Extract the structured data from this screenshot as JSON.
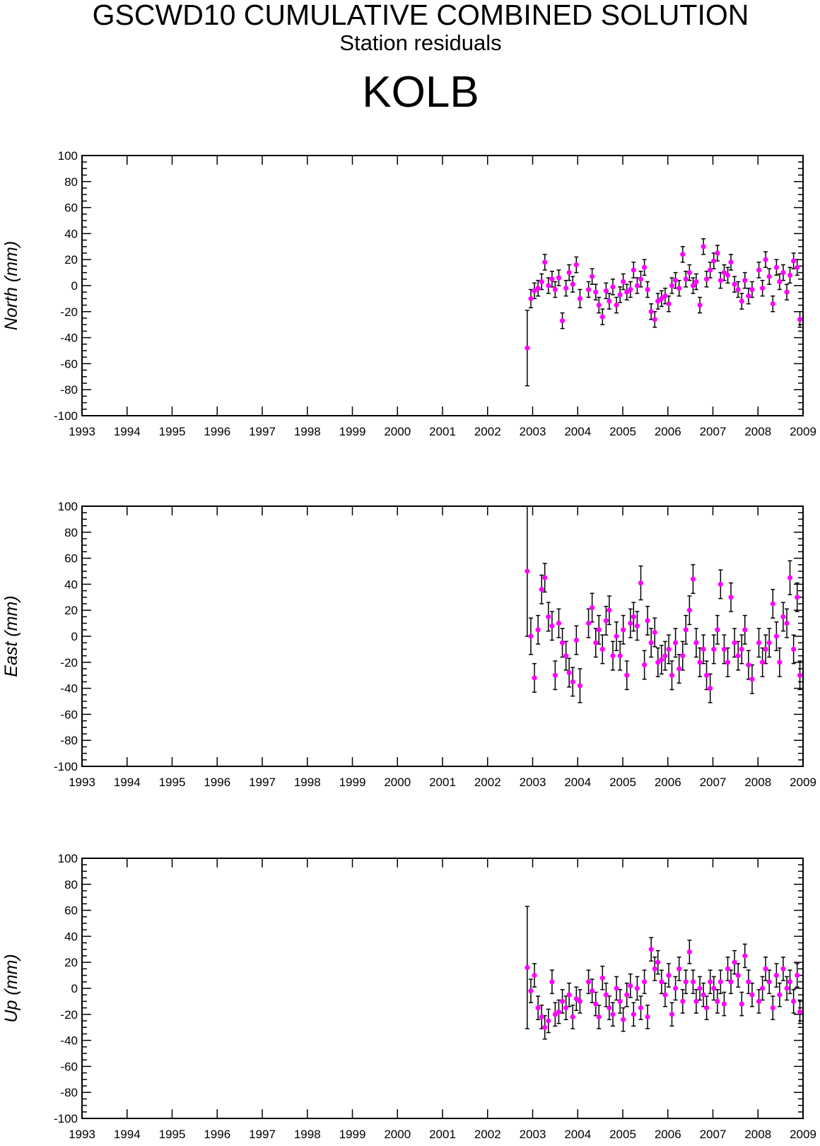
{
  "header": {
    "title": "GSCWD10 CUMULATIVE COMBINED SOLUTION",
    "subtitle": "Station residuals",
    "station": "KOLB"
  },
  "colors": {
    "marker": "#ff00ff",
    "error_bar": "#000000",
    "axis": "#000000"
  },
  "chart_data": [
    {
      "type": "scatter",
      "ylabel": "North (mm)",
      "xlim": [
        1993,
        2009
      ],
      "ylim": [
        -100,
        100
      ],
      "xticks": [
        "1993",
        "1994",
        "1995",
        "1996",
        "1997",
        "1998",
        "1999",
        "2000",
        "2001",
        "2002",
        "2003",
        "2004",
        "2005",
        "2006",
        "2007",
        "2008",
        "2009"
      ],
      "yticks": [
        "100",
        "80",
        "60",
        "40",
        "20",
        "0",
        "-20",
        "-40",
        "-60",
        "-80",
        "-100"
      ],
      "series": [
        {
          "x": [
            2002.88,
            2002.96,
            2003.04,
            2003.12,
            2003.2,
            2003.27,
            2003.35,
            2003.43,
            2003.5,
            2003.58,
            2003.66,
            2003.74,
            2003.81,
            2003.89,
            2003.97,
            2004.05,
            2004.24,
            2004.32,
            2004.4,
            2004.47,
            2004.55,
            2004.63,
            2004.7,
            2004.78,
            2004.86,
            2004.94,
            2005.01,
            2005.09,
            2005.17,
            2005.24,
            2005.32,
            2005.4,
            2005.48,
            2005.55,
            2005.63,
            2005.71,
            2005.78,
            2005.86,
            2005.94,
            2006.02,
            2006.09,
            2006.17,
            2006.25,
            2006.33,
            2006.4,
            2006.48,
            2006.56,
            2006.63,
            2006.71,
            2006.79,
            2006.86,
            2006.94,
            2007.02,
            2007.1,
            2007.17,
            2007.25,
            2007.33,
            2007.4,
            2007.48,
            2007.56,
            2007.64,
            2007.71,
            2007.79,
            2007.87,
            2008.02,
            2008.1,
            2008.17,
            2008.25,
            2008.33,
            2008.41,
            2008.48,
            2008.56,
            2008.64,
            2008.71,
            2008.79,
            2008.87,
            2008.93
          ],
          "y": [
            -48,
            -10,
            -4,
            -2,
            3,
            18,
            0,
            5,
            -3,
            6,
            -27,
            -2,
            10,
            1,
            16,
            -10,
            -3,
            7,
            -5,
            -15,
            -24,
            -4,
            -12,
            -1,
            -15,
            -7,
            3,
            -5,
            -3,
            12,
            0,
            5,
            14,
            -3,
            -20,
            -26,
            -12,
            -10,
            -8,
            -14,
            0,
            4,
            -2,
            24,
            5,
            10,
            0,
            3,
            -15,
            30,
            5,
            12,
            19,
            25,
            4,
            10,
            8,
            18,
            1,
            -3,
            -12,
            4,
            -8,
            -3,
            12,
            -2,
            20,
            7,
            -14,
            14,
            3,
            10,
            -5,
            8,
            19,
            14,
            -26
          ],
          "err": [
            29,
            7,
            6,
            6,
            6,
            6,
            6,
            6,
            6,
            6,
            6,
            6,
            6,
            6,
            6,
            7,
            6,
            6,
            6,
            6,
            6,
            6,
            6,
            6,
            6,
            6,
            6,
            6,
            6,
            6,
            6,
            6,
            6,
            6,
            6,
            6,
            6,
            6,
            6,
            6,
            6,
            6,
            6,
            6,
            6,
            6,
            6,
            6,
            6,
            6,
            6,
            6,
            6,
            6,
            6,
            6,
            6,
            6,
            6,
            6,
            6,
            6,
            6,
            6,
            6,
            6,
            6,
            6,
            6,
            6,
            6,
            6,
            6,
            6,
            6,
            6,
            6
          ]
        }
      ]
    },
    {
      "type": "scatter",
      "ylabel": "East (mm)",
      "xlim": [
        1993,
        2009
      ],
      "ylim": [
        -100,
        100
      ],
      "xticks": [
        "1993",
        "1994",
        "1995",
        "1996",
        "1997",
        "1998",
        "1999",
        "2000",
        "2001",
        "2002",
        "2003",
        "2004",
        "2005",
        "2006",
        "2007",
        "2008",
        "2009"
      ],
      "yticks": [
        "100",
        "80",
        "60",
        "40",
        "20",
        "0",
        "-20",
        "-40",
        "-60",
        "-80",
        "-100"
      ],
      "series": [
        {
          "x": [
            2002.88,
            2002.96,
            2003.04,
            2003.12,
            2003.2,
            2003.27,
            2003.35,
            2003.43,
            2003.5,
            2003.58,
            2003.66,
            2003.74,
            2003.81,
            2003.89,
            2003.97,
            2004.05,
            2004.24,
            2004.32,
            2004.4,
            2004.47,
            2004.55,
            2004.63,
            2004.7,
            2004.78,
            2004.86,
            2004.94,
            2005.01,
            2005.09,
            2005.17,
            2005.24,
            2005.32,
            2005.4,
            2005.48,
            2005.55,
            2005.63,
            2005.71,
            2005.78,
            2005.86,
            2005.94,
            2006.02,
            2006.09,
            2006.17,
            2006.25,
            2006.33,
            2006.4,
            2006.48,
            2006.56,
            2006.63,
            2006.71,
            2006.79,
            2006.86,
            2006.94,
            2007.02,
            2007.1,
            2007.17,
            2007.25,
            2007.33,
            2007.4,
            2007.48,
            2007.56,
            2007.64,
            2007.71,
            2007.79,
            2007.87,
            2008.02,
            2008.1,
            2008.17,
            2008.25,
            2008.33,
            2008.41,
            2008.48,
            2008.56,
            2008.64,
            2008.71,
            2008.79,
            2008.87,
            2008.93
          ],
          "y": [
            50,
            0,
            -32,
            5,
            36,
            45,
            15,
            8,
            -30,
            10,
            -5,
            -15,
            -28,
            -35,
            -3,
            -38,
            10,
            22,
            -5,
            5,
            -10,
            12,
            20,
            -15,
            0,
            -15,
            5,
            -30,
            10,
            15,
            8,
            41,
            -22,
            12,
            -5,
            3,
            -20,
            -18,
            -15,
            -10,
            -30,
            -5,
            -25,
            -15,
            5,
            20,
            44,
            -5,
            -20,
            -10,
            -30,
            -40,
            -10,
            5,
            40,
            -10,
            -20,
            30,
            -5,
            -15,
            -10,
            5,
            -22,
            -33,
            -5,
            -20,
            -10,
            -5,
            25,
            0,
            -20,
            15,
            10,
            45,
            -10,
            30,
            -30
          ],
          "err": [
            50,
            14,
            11,
            11,
            11,
            11,
            11,
            11,
            11,
            11,
            11,
            11,
            11,
            11,
            11,
            13,
            11,
            11,
            11,
            11,
            11,
            11,
            11,
            11,
            11,
            11,
            11,
            11,
            11,
            11,
            11,
            13,
            11,
            11,
            11,
            11,
            11,
            11,
            11,
            11,
            11,
            11,
            11,
            11,
            11,
            11,
            11,
            11,
            11,
            11,
            11,
            11,
            11,
            11,
            11,
            11,
            11,
            11,
            11,
            11,
            11,
            11,
            11,
            11,
            11,
            11,
            11,
            11,
            11,
            11,
            11,
            11,
            11,
            13,
            11,
            11,
            11
          ]
        }
      ]
    },
    {
      "type": "scatter",
      "ylabel": "Up (mm)",
      "xlim": [
        1993,
        2009
      ],
      "ylim": [
        -100,
        100
      ],
      "xticks": [
        "1993",
        "1994",
        "1995",
        "1996",
        "1997",
        "1998",
        "1999",
        "2000",
        "2001",
        "2002",
        "2003",
        "2004",
        "2005",
        "2006",
        "2007",
        "2008",
        "2009"
      ],
      "yticks": [
        "100",
        "80",
        "60",
        "40",
        "20",
        "0",
        "-20",
        "-40",
        "-60",
        "-80",
        "-100"
      ],
      "series": [
        {
          "x": [
            2002.88,
            2002.96,
            2003.04,
            2003.12,
            2003.2,
            2003.27,
            2003.35,
            2003.43,
            2003.5,
            2003.58,
            2003.66,
            2003.74,
            2003.81,
            2003.89,
            2003.97,
            2004.05,
            2004.24,
            2004.32,
            2004.4,
            2004.47,
            2004.55,
            2004.63,
            2004.7,
            2004.78,
            2004.86,
            2004.94,
            2005.01,
            2005.09,
            2005.17,
            2005.24,
            2005.32,
            2005.4,
            2005.48,
            2005.55,
            2005.63,
            2005.71,
            2005.78,
            2005.86,
            2005.94,
            2006.02,
            2006.09,
            2006.17,
            2006.25,
            2006.33,
            2006.4,
            2006.48,
            2006.56,
            2006.63,
            2006.71,
            2006.79,
            2006.86,
            2006.94,
            2007.02,
            2007.1,
            2007.17,
            2007.25,
            2007.33,
            2007.4,
            2007.48,
            2007.56,
            2007.64,
            2007.71,
            2007.79,
            2007.87,
            2008.02,
            2008.1,
            2008.17,
            2008.25,
            2008.33,
            2008.41,
            2008.48,
            2008.56,
            2008.64,
            2008.71,
            2008.79,
            2008.87,
            2008.93
          ],
          "y": [
            16,
            -2,
            10,
            -15,
            -22,
            -30,
            -25,
            5,
            -20,
            -18,
            -10,
            -15,
            -5,
            -22,
            -8,
            -10,
            5,
            -2,
            -12,
            -22,
            8,
            -5,
            -15,
            -20,
            0,
            -10,
            -24,
            -5,
            2,
            -20,
            0,
            -15,
            5,
            -22,
            30,
            15,
            20,
            5,
            -5,
            10,
            -20,
            0,
            15,
            -10,
            5,
            28,
            5,
            -10,
            0,
            -5,
            -15,
            5,
            0,
            -10,
            5,
            -12,
            15,
            5,
            20,
            10,
            -12,
            25,
            5,
            -5,
            -10,
            0,
            15,
            5,
            -15,
            10,
            -5,
            15,
            0,
            5,
            -10,
            10,
            -18
          ],
          "err": [
            47,
            9,
            9,
            9,
            9,
            9,
            9,
            9,
            9,
            9,
            9,
            9,
            9,
            9,
            9,
            9,
            9,
            9,
            9,
            9,
            9,
            9,
            9,
            9,
            9,
            9,
            9,
            9,
            9,
            9,
            9,
            9,
            9,
            9,
            9,
            9,
            9,
            9,
            9,
            9,
            9,
            9,
            9,
            9,
            9,
            9,
            9,
            9,
            9,
            9,
            9,
            9,
            9,
            9,
            9,
            9,
            9,
            9,
            9,
            9,
            9,
            9,
            9,
            9,
            9,
            9,
            9,
            9,
            9,
            9,
            9,
            9,
            9,
            9,
            9,
            9,
            9
          ]
        }
      ]
    }
  ]
}
